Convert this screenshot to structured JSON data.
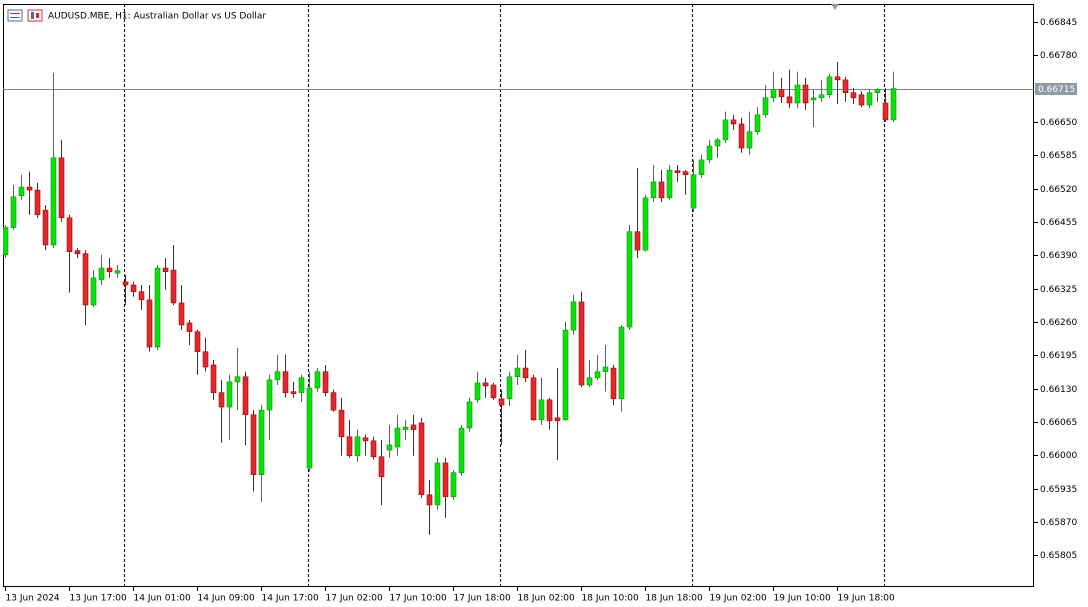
{
  "chart_data": {
    "type": "candlestick",
    "title": "AUDUSD.MBE, H1:  Australian Dollar vs US Dollar",
    "up_color": "#00e600",
    "down_color": "#e8262b",
    "ylim": [
      0.65743,
      0.6688
    ],
    "yticks": [
      0.66845,
      {
        "value": 0.6678,
        "label": "0.66780"
      },
      {
        "value": 0.6665,
        "label": "0.66650"
      },
      0.66585,
      {
        "value": 0.6652,
        "label": "0.66520"
      },
      0.66455,
      {
        "value": 0.6639,
        "label": "0.66390"
      },
      0.66325,
      {
        "value": 0.6626,
        "label": "0.66260"
      },
      0.66195,
      {
        "value": 0.6613,
        "label": "0.66130"
      },
      0.66065,
      {
        "value": 0.66,
        "label": "0.66000"
      },
      0.65935,
      {
        "value": 0.6587,
        "label": "0.65870"
      },
      0.65805
    ],
    "xticks": [
      "13 Jun 2024",
      "13 Jun 17:00",
      "14 Jun 01:00",
      "14 Jun 09:00",
      "14 Jun 17:00",
      "17 Jun 02:00",
      "17 Jun 10:00",
      "17 Jun 18:00",
      "18 Jun 02:00",
      "18 Jun 10:00",
      "18 Jun 18:00",
      "19 Jun 02:00",
      "19 Jun 10:00",
      "19 Jun 18:00"
    ],
    "period_separators": [
      15,
      38,
      62,
      86,
      110
    ],
    "last_price": 0.66715,
    "open": [
      0.66391,
      0.66444,
      0.66506,
      0.66523,
      0.66517,
      0.66478,
      0.6641,
      0.6658,
      0.66463,
      0.66399,
      0.66393,
      0.66293,
      0.66342,
      0.66365,
      0.66355,
      0.66338,
      0.66332,
      0.66319,
      0.66303,
      0.66211,
      0.66365,
      0.66361,
      0.66297,
      0.66258,
      0.66241,
      0.66202,
      0.66176,
      0.66122,
      0.66094,
      0.66143,
      0.66153,
      0.66079,
      0.65962,
      0.66088,
      0.66147,
      0.66163,
      0.66124,
      0.66122,
      0.65975,
      0.66131,
      0.66163,
      0.66122,
      0.66088,
      0.66036,
      0.65999,
      0.66034,
      0.66028,
      0.65997,
      0.6601,
      0.66016,
      0.6605,
      0.66059,
      0.66063,
      0.65923,
      0.65903,
      0.65985,
      0.65919,
      0.65966,
      0.66053,
      0.66108,
      0.66141,
      0.66137,
      0.6611,
      0.6611,
      0.66153,
      0.6617,
      0.66151,
      0.66069,
      0.66108,
      0.66073,
      0.66069,
      0.66244,
      0.66299,
      0.66137,
      0.66151,
      0.66163,
      0.6617,
      0.6611,
      0.6625,
      0.66436,
      0.664,
      0.66502,
      0.66533,
      0.66502,
      0.66555,
      0.66553,
      0.66482,
      0.66547,
      0.66576,
      0.66603,
      0.66615,
      0.66654,
      0.66646,
      0.66599,
      0.66631,
      0.66664,
      0.66697,
      0.66713,
      0.66699,
      0.66687,
      0.66722,
      0.66693,
      0.66697,
      0.66703,
      0.66738,
      0.66732,
      0.66707,
      0.66703,
      0.66683,
      0.66707,
      0.66687,
      0.66654
    ],
    "high": [
      0.66449,
      0.66527,
      0.66547,
      0.66553,
      0.66531,
      0.66488,
      0.66746,
      0.66615,
      0.66469,
      0.66404,
      0.664,
      0.66361,
      0.66391,
      0.66385,
      0.66371,
      0.66352,
      0.66338,
      0.66332,
      0.66332,
      0.66371,
      0.66385,
      0.6641,
      0.66332,
      0.66264,
      0.66245,
      0.66229,
      0.66186,
      0.66147,
      0.66157,
      0.66209,
      0.66163,
      0.66088,
      0.66098,
      0.66157,
      0.66196,
      0.66196,
      0.66143,
      0.66157,
      0.66163,
      0.6617,
      0.66176,
      0.66128,
      0.66112,
      0.66069,
      0.6605,
      0.6604,
      0.66036,
      0.6603,
      0.66059,
      0.66079,
      0.66069,
      0.66079,
      0.66073,
      0.65952,
      0.65995,
      0.65995,
      0.65971,
      0.66059,
      0.66112,
      0.66163,
      0.66151,
      0.66141,
      0.66128,
      0.66163,
      0.66196,
      0.66205,
      0.66157,
      0.66151,
      0.66112,
      0.6617,
      0.6626,
      0.66313,
      0.66319,
      0.66186,
      0.66196,
      0.66215,
      0.66176,
      0.66254,
      0.66449,
      0.6656,
      0.66508,
      0.66566,
      0.66556,
      0.66566,
      0.66566,
      0.66556,
      0.66576,
      0.66586,
      0.66615,
      0.66619,
      0.6667,
      0.66664,
      0.66658,
      0.6667,
      0.66679,
      0.66722,
      0.66748,
      0.66736,
      0.66752,
      0.66748,
      0.66736,
      0.66713,
      0.66732,
      0.66744,
      0.66767,
      0.66738,
      0.66716,
      0.6671,
      0.66713,
      0.66716,
      0.66716,
      0.66748
    ],
    "low": [
      0.66385,
      0.6644,
      0.66498,
      0.66469,
      0.66463,
      0.664,
      0.66404,
      0.66455,
      0.66317,
      0.66385,
      0.66254,
      0.66289,
      0.66332,
      0.66346,
      0.66346,
      0.66293,
      0.66309,
      0.66283,
      0.66202,
      0.66205,
      0.66323,
      0.66293,
      0.66245,
      0.66215,
      0.66157,
      0.66163,
      0.66108,
      0.66024,
      0.6603,
      0.66088,
      0.6602,
      0.65929,
      0.65909,
      0.6603,
      0.66137,
      0.66112,
      0.66112,
      0.66104,
      0.65968,
      0.66124,
      0.66115,
      0.66085,
      0.65999,
      0.65995,
      0.65987,
      0.65999,
      0.65991,
      0.65903,
      0.65995,
      0.65999,
      0.6603,
      0.65999,
      0.65917,
      0.65845,
      0.65894,
      0.65878,
      0.65913,
      0.6596,
      0.66046,
      0.66102,
      0.66112,
      0.66108,
      0.6602,
      0.66096,
      0.66137,
      0.66143,
      0.66067,
      0.66059,
      0.6605,
      0.65991,
      0.66067,
      0.66235,
      0.66133,
      0.66133,
      0.66147,
      0.66124,
      0.66098,
      0.66085,
      0.66244,
      0.66385,
      0.66397,
      0.66494,
      0.66494,
      0.66498,
      0.66533,
      0.66508,
      0.66474,
      0.66541,
      0.6657,
      0.6658,
      0.66609,
      0.66635,
      0.6659,
      0.66586,
      0.66625,
      0.66658,
      0.66689,
      0.66687,
      0.66677,
      0.66677,
      0.66673,
      0.6664,
      0.66689,
      0.66697,
      0.66685,
      0.66689,
      0.66685,
      0.66679,
      0.66677,
      0.66689,
      0.6665,
      0.6665
    ],
    "close": [
      0.66444,
      0.66504,
      0.66523,
      0.66517,
      0.66469,
      0.6641,
      0.6658,
      0.66463,
      0.66397,
      0.66393,
      0.66293,
      0.66346,
      0.66365,
      0.66358,
      0.6636,
      0.66332,
      0.66319,
      0.66303,
      0.66211,
      0.66365,
      0.66358,
      0.66297,
      0.66254,
      0.66241,
      0.66202,
      0.66172,
      0.66122,
      0.66094,
      0.66143,
      0.66153,
      0.66079,
      0.65962,
      0.66088,
      0.66147,
      0.66163,
      0.66122,
      0.6612,
      0.66151,
      0.66131,
      0.66163,
      0.66122,
      0.66088,
      0.66036,
      0.65999,
      0.66036,
      0.66028,
      0.65997,
      0.65958,
      0.6602,
      0.66053,
      0.66055,
      0.6605,
      0.65923,
      0.65903,
      0.65985,
      0.65919,
      0.65966,
      0.66053,
      0.66104,
      0.66141,
      0.66135,
      0.66112,
      0.66098,
      0.66153,
      0.6617,
      0.66151,
      0.66069,
      0.66108,
      0.66067,
      0.66067,
      0.66244,
      0.66299,
      0.66137,
      0.66151,
      0.66163,
      0.66172,
      0.6611,
      0.6625,
      0.66436,
      0.664,
      0.66502,
      0.66533,
      0.66502,
      0.66556,
      0.66551,
      0.66547,
      0.66547,
      0.66576,
      0.66603,
      0.66615,
      0.66654,
      0.66646,
      0.66599,
      0.66631,
      0.66664,
      0.66697,
      0.66713,
      0.66699,
      0.66687,
      0.66722,
      0.66687,
      0.66697,
      0.66703,
      0.66738,
      0.66732,
      0.66707,
      0.66697,
      0.66683,
      0.66707,
      0.66713,
      0.66654,
      0.66715
    ]
  }
}
